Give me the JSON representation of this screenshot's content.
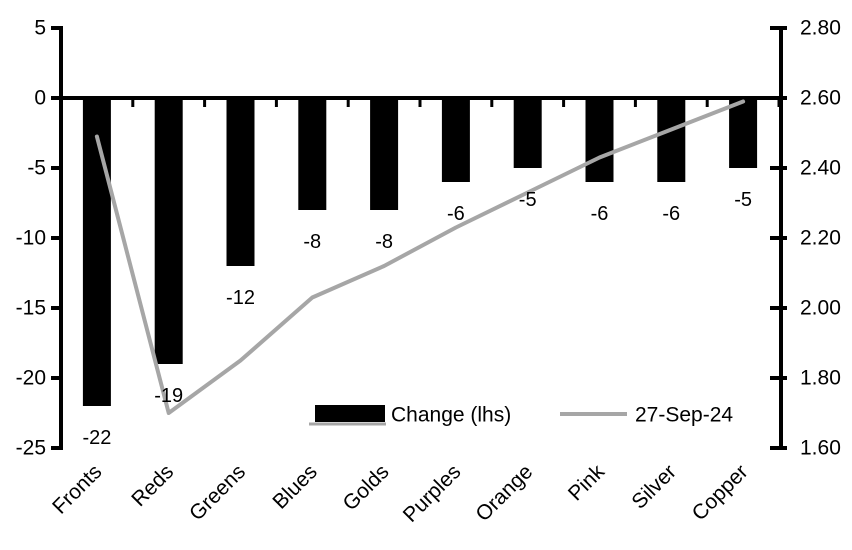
{
  "chart_data": {
    "type": "combo",
    "categories": [
      "Fronts",
      "Reds",
      "Greens",
      "Blues",
      "Golds",
      "Purples",
      "Orange",
      "Pink",
      "Silver",
      "Copper"
    ],
    "series": [
      {
        "name": "Change (lhs)",
        "type": "bar",
        "axis": "left",
        "color": "#000000",
        "values": [
          -22,
          -19,
          -12,
          -8,
          -8,
          -6,
          -5,
          -6,
          -6,
          -5
        ],
        "data_labels": [
          "-22",
          "-19",
          "-12",
          "-8",
          "-8",
          "-6",
          "-5",
          "-6",
          "-6",
          "-5"
        ]
      },
      {
        "name": "27-Sep-24",
        "type": "line",
        "axis": "right",
        "color": "#a6a6a6",
        "values": [
          2.49,
          1.7,
          1.85,
          2.03,
          2.12,
          2.23,
          2.33,
          2.43,
          2.51,
          2.59
        ]
      }
    ],
    "left_axis": {
      "min": -25,
      "max": 5,
      "step": 5,
      "tick_labels": [
        "5",
        "0",
        "-5",
        "-10",
        "-15",
        "-20",
        "-25"
      ]
    },
    "right_axis": {
      "min": 1.6,
      "max": 2.8,
      "step": 0.2,
      "tick_labels": [
        "2.80",
        "2.60",
        "2.40",
        "2.20",
        "2.00",
        "1.80",
        "1.60"
      ]
    },
    "legend": {
      "position": "bottom-inside",
      "items": [
        {
          "label": "Change (lhs)",
          "marker": "bar",
          "color": "#000000"
        },
        {
          "label": "27-Sep-24",
          "marker": "line",
          "color": "#a6a6a6"
        }
      ]
    },
    "grid": "off",
    "background": "#ffffff",
    "axis_color": "#000000"
  }
}
